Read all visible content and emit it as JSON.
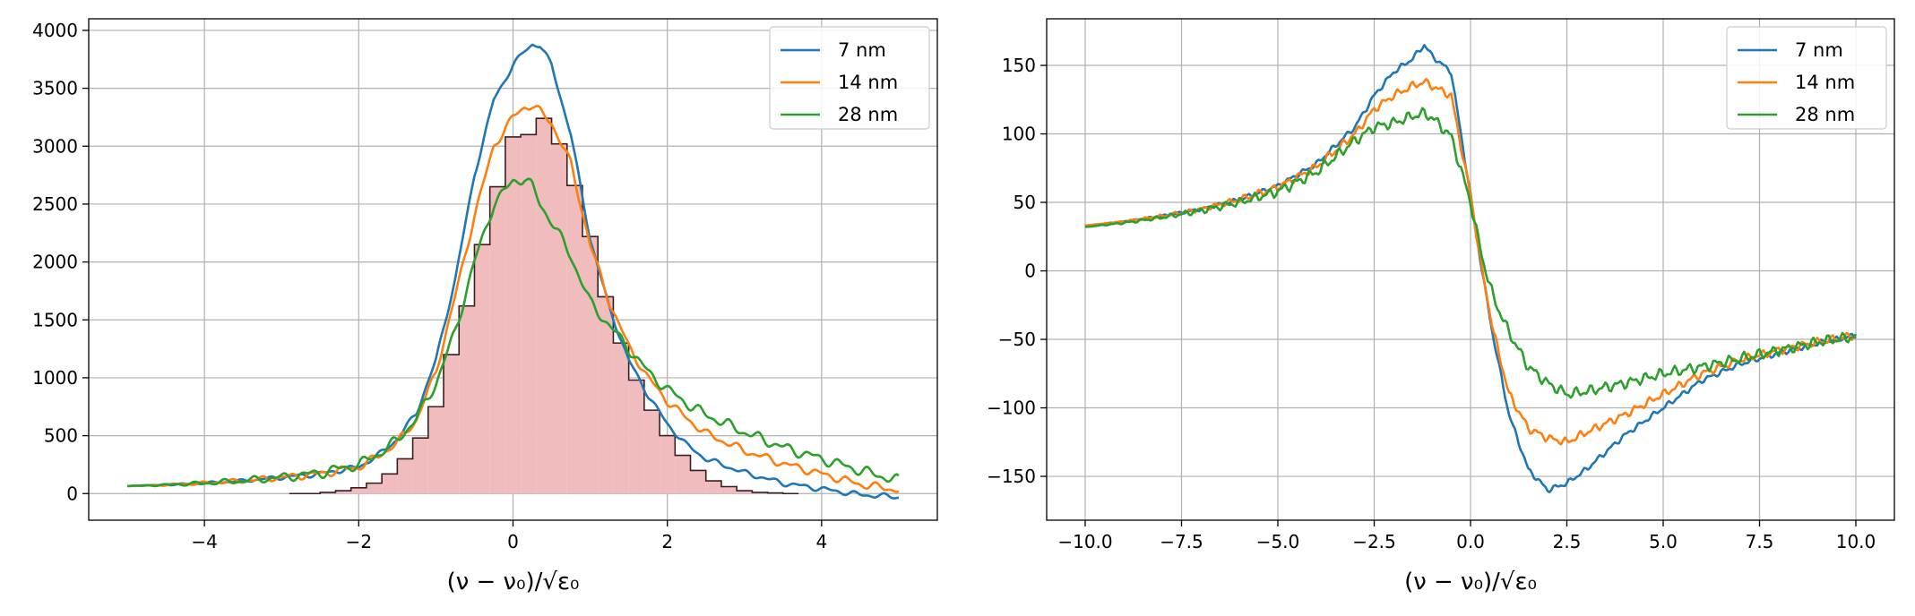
{
  "colors": {
    "series_7nm": "#1f77b4",
    "series_14nm": "#ff7f0e",
    "series_28nm": "#2ca02c",
    "histogram_fill": "#f0bcbe",
    "histogram_edge": "#3a1f22",
    "grid": "#b0b0b0"
  },
  "chart_data": [
    {
      "type": "line",
      "overlay": "histogram",
      "xlabel": "(ν − ν₀)/√ε₀",
      "xlim": [
        -5.5,
        5.5
      ],
      "ylim": [
        -230,
        4100
      ],
      "xticks": [
        -4,
        -2,
        0,
        2,
        4
      ],
      "xtick_labels": [
        "−4",
        "−2",
        "0",
        "2",
        "4"
      ],
      "yticks": [
        0,
        500,
        1000,
        1500,
        2000,
        2500,
        3000,
        3500,
        4000
      ],
      "ytick_labels": [
        "0",
        "500",
        "1000",
        "1500",
        "2000",
        "2500",
        "3000",
        "3500",
        "4000"
      ],
      "grid": true,
      "legend_position": "top-right",
      "legend": [
        "7 nm",
        "14 nm",
        "28 nm"
      ],
      "series": [
        {
          "name": "7 nm",
          "color_key": "series_7nm",
          "x": [
            -5.0,
            -4.5,
            -4.0,
            -3.5,
            -3.0,
            -2.5,
            -2.0,
            -1.75,
            -1.5,
            -1.25,
            -1.0,
            -0.75,
            -0.5,
            -0.25,
            0.0,
            0.15,
            0.25,
            0.35,
            0.5,
            0.75,
            1.0,
            1.25,
            1.5,
            1.75,
            2.0,
            2.25,
            2.5,
            3.0,
            3.5,
            4.0,
            4.5,
            5.0
          ],
          "y": [
            65,
            75,
            90,
            110,
            140,
            170,
            230,
            330,
            470,
            700,
            1150,
            1850,
            2750,
            3400,
            3700,
            3820,
            3880,
            3870,
            3700,
            3100,
            2200,
            1600,
            1150,
            850,
            600,
            420,
            300,
            180,
            90,
            40,
            -10,
            -30
          ]
        },
        {
          "name": "14 nm",
          "color_key": "series_14nm",
          "x": [
            -5.0,
            -4.5,
            -4.0,
            -3.5,
            -3.0,
            -2.5,
            -2.0,
            -1.75,
            -1.5,
            -1.25,
            -1.0,
            -0.75,
            -0.5,
            -0.25,
            0.0,
            0.15,
            0.25,
            0.35,
            0.5,
            0.75,
            1.0,
            1.25,
            1.5,
            1.75,
            2.0,
            2.25,
            2.5,
            3.0,
            3.5,
            4.0,
            4.5,
            5.0
          ],
          "y": [
            65,
            75,
            90,
            110,
            140,
            170,
            230,
            320,
            440,
            640,
            1050,
            1700,
            2400,
            3000,
            3250,
            3340,
            3350,
            3300,
            3200,
            2850,
            2150,
            1650,
            1270,
            1000,
            800,
            650,
            520,
            370,
            260,
            170,
            80,
            30
          ]
        },
        {
          "name": "28 nm",
          "color_key": "series_28nm",
          "x": [
            -5.0,
            -4.5,
            -4.0,
            -3.5,
            -3.0,
            -2.5,
            -2.0,
            -1.75,
            -1.5,
            -1.25,
            -1.0,
            -0.75,
            -0.5,
            -0.25,
            0.0,
            0.15,
            0.25,
            0.35,
            0.5,
            0.75,
            1.0,
            1.25,
            1.5,
            1.75,
            2.0,
            2.25,
            2.5,
            3.0,
            3.5,
            4.0,
            4.5,
            5.0
          ],
          "y": [
            65,
            75,
            90,
            110,
            140,
            180,
            250,
            340,
            460,
            650,
            950,
            1400,
            2000,
            2500,
            2700,
            2720,
            2650,
            2500,
            2350,
            2050,
            1650,
            1450,
            1250,
            1050,
            900,
            780,
            680,
            530,
            400,
            300,
            200,
            110
          ]
        }
      ],
      "histogram": {
        "bin_width": 0.2,
        "bin_start": -2.9,
        "counts": [
          0,
          0,
          10,
          25,
          50,
          90,
          170,
          300,
          480,
          750,
          1200,
          1620,
          2150,
          2650,
          3080,
          3100,
          3240,
          3020,
          2660,
          2220,
          1700,
          1300,
          980,
          720,
          500,
          330,
          200,
          110,
          60,
          25,
          10,
          5,
          0
        ]
      }
    },
    {
      "type": "line",
      "xlabel": "(ν − ν₀)/√ε₀",
      "xlim": [
        -11.0,
        11.0
      ],
      "ylim": [
        -182,
        184
      ],
      "xticks": [
        -10,
        -7.5,
        -5,
        -2.5,
        0,
        2.5,
        5,
        7.5,
        10
      ],
      "xtick_labels": [
        "−10.0",
        "−7.5",
        "−5.0",
        "−2.5",
        "0.0",
        "2.5",
        "5.0",
        "7.5",
        "10.0"
      ],
      "yticks": [
        -150,
        -100,
        -50,
        0,
        50,
        100,
        150
      ],
      "ytick_labels": [
        "−150",
        "−100",
        "−50",
        "0",
        "50",
        "100",
        "150"
      ],
      "grid": true,
      "legend_position": "top-right",
      "legend": [
        "7 nm",
        "14 nm",
        "28 nm"
      ],
      "series": [
        {
          "name": "7 nm",
          "color_key": "series_7nm",
          "x": [
            -10,
            -9,
            -8,
            -7,
            -6,
            -5,
            -4,
            -3,
            -2.5,
            -2,
            -1.5,
            -1.2,
            -1,
            -0.5,
            0,
            0.3,
            0.6,
            1,
            1.5,
            2,
            2.5,
            3,
            4,
            5,
            6,
            7,
            8,
            9,
            10
          ],
          "y": [
            33,
            36,
            40,
            45,
            52,
            62,
            78,
            105,
            128,
            145,
            155,
            165,
            157,
            145,
            55,
            0,
            -50,
            -105,
            -145,
            -160,
            -155,
            -145,
            -120,
            -100,
            -80,
            -68,
            -60,
            -53,
            -47
          ]
        },
        {
          "name": "14 nm",
          "color_key": "series_14nm",
          "x": [
            -10,
            -9,
            -8,
            -7,
            -6,
            -5,
            -4,
            -3,
            -2.5,
            -2,
            -1.5,
            -1.2,
            -1,
            -0.5,
            0,
            0.3,
            0.6,
            1,
            1.5,
            2,
            2.5,
            3,
            4,
            5,
            6,
            7,
            8,
            9,
            10
          ],
          "y": [
            33,
            36,
            40,
            45,
            52,
            61,
            76,
            100,
            118,
            128,
            135,
            138,
            135,
            128,
            55,
            0,
            -45,
            -90,
            -115,
            -122,
            -125,
            -118,
            -105,
            -90,
            -75,
            -65,
            -58,
            -52,
            -47
          ]
        },
        {
          "name": "28 nm",
          "color_key": "series_28nm",
          "x": [
            -10,
            -9,
            -8,
            -7,
            -6,
            -5,
            -4,
            -3,
            -2.5,
            -2,
            -1.5,
            -1.2,
            -1,
            -0.5,
            0,
            0.3,
            0.6,
            1,
            1.5,
            2,
            2.5,
            3,
            4,
            5,
            6,
            7,
            8,
            9,
            10
          ],
          "y": [
            32,
            35,
            39,
            44,
            50,
            58,
            72,
            95,
            105,
            108,
            113,
            115,
            112,
            98,
            50,
            10,
            -20,
            -45,
            -70,
            -82,
            -90,
            -88,
            -82,
            -75,
            -70,
            -64,
            -58,
            -52,
            -48
          ]
        }
      ]
    }
  ]
}
